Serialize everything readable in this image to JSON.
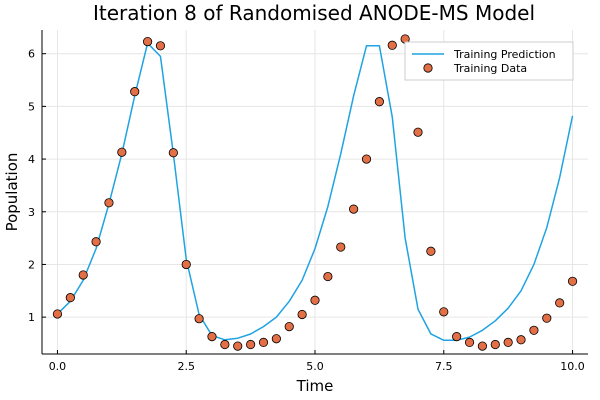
{
  "chart_data": {
    "type": "line",
    "title": "Iteration 8 of Randomised ANODE-MS Model",
    "xlabel": "Time",
    "ylabel": "Population",
    "xlim": [
      -0.3,
      10.3
    ],
    "ylim": [
      0.3,
      6.45
    ],
    "xticks": [
      0,
      2.5,
      5.0,
      7.5,
      10.0
    ],
    "xtick_labels": [
      "0.0",
      "2.5",
      "5.0",
      "7.5",
      "10.0"
    ],
    "yticks": [
      1,
      2,
      3,
      4,
      5,
      6
    ],
    "ytick_labels": [
      "1",
      "2",
      "3",
      "4",
      "5",
      "6"
    ],
    "grid": true,
    "legend_position": "top-right",
    "colors": {
      "prediction": "#1fa3e2",
      "data": "#e26f46"
    },
    "series": [
      {
        "name": "Training Prediction",
        "kind": "line",
        "x": [
          0,
          0.25,
          0.5,
          0.75,
          1.0,
          1.25,
          1.5,
          1.75,
          2.0,
          2.25,
          2.5,
          2.75,
          3.0,
          3.25,
          3.5,
          3.75,
          4.0,
          4.25,
          4.5,
          4.75,
          5.0,
          5.25,
          5.5,
          5.75,
          6.0,
          6.25,
          6.5,
          6.75,
          7.0,
          7.25,
          7.5,
          7.75,
          8.0,
          8.25,
          8.5,
          8.75,
          9.0,
          9.25,
          9.5,
          9.75,
          10.0
        ],
        "values": [
          1.06,
          1.3,
          1.7,
          2.3,
          3.15,
          4.1,
          5.2,
          6.2,
          5.95,
          4.1,
          2.1,
          1.05,
          0.65,
          0.57,
          0.6,
          0.68,
          0.82,
          1.0,
          1.3,
          1.7,
          2.3,
          3.1,
          4.1,
          5.2,
          6.15,
          6.15,
          4.8,
          2.5,
          1.15,
          0.68,
          0.56,
          0.56,
          0.62,
          0.75,
          0.93,
          1.17,
          1.5,
          2.0,
          2.7,
          3.65,
          4.82
        ]
      },
      {
        "name": "Training Data",
        "kind": "scatter",
        "x": [
          0,
          0.25,
          0.5,
          0.75,
          1.0,
          1.25,
          1.5,
          1.75,
          2.0,
          2.25,
          2.5,
          2.75,
          3.0,
          3.25,
          3.5,
          3.75,
          4.0,
          4.25,
          4.5,
          4.75,
          5.0,
          5.25,
          5.5,
          5.75,
          6.0,
          6.25,
          6.5,
          6.75,
          7.0,
          7.25,
          7.5,
          7.75,
          8.0,
          8.25,
          8.5,
          8.75,
          9.0,
          9.25,
          9.5,
          9.75,
          10.0
        ],
        "values": [
          1.06,
          1.37,
          1.8,
          2.43,
          3.17,
          4.13,
          5.28,
          6.23,
          6.15,
          4.12,
          2.0,
          0.97,
          0.63,
          0.48,
          0.45,
          0.48,
          0.52,
          0.59,
          0.82,
          1.05,
          1.32,
          1.77,
          2.33,
          3.05,
          4.0,
          5.09,
          6.16,
          6.28,
          4.51,
          2.25,
          1.1,
          0.63,
          0.52,
          0.45,
          0.48,
          0.52,
          0.57,
          0.75,
          0.98,
          1.27,
          1.68
        ]
      }
    ]
  }
}
